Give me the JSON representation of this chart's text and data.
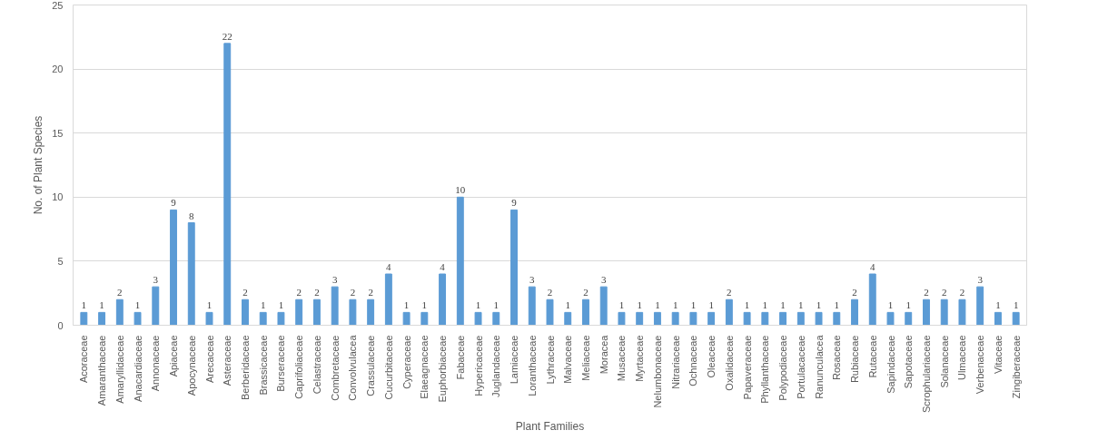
{
  "chart_data": {
    "type": "bar",
    "xlabel": "Plant Families",
    "ylabel": "No. of Plant Species",
    "categories": [
      "Acoraceae",
      "Amaranthaceae",
      "Amaryllidaceae",
      "Anacardiaceae",
      "Annonaceae",
      "Apiaceae",
      "Apocynaceae",
      "Arecaceae",
      "Asteraceae",
      "Berberidaceae",
      "Brassicaceae",
      "Burseraceae",
      "Caprifoliaceae",
      "Celastraceae",
      "Combretaceae",
      "Convolvulacea",
      "Crassulaceae",
      "Cucurbitaceae",
      "Cyperaceae",
      "Elaeagnaceae",
      "Euphorbiaceae",
      "Fabaceae",
      "Hypericaceae",
      "Juglandaceae",
      "Lamiaceae",
      "Loranthaceae",
      "Lythraceae",
      "Malvaceae",
      "Meliaceae",
      "Moracea",
      "Musaceae",
      "Myrtaceae",
      "Nelumbonaceae",
      "Nitrariaceae",
      "Ochnaceae",
      "Oleaceae",
      "Oxalidaceae",
      "Papaveraceae",
      "Phyllanthaceae",
      "Polypodiaceae",
      "Portulacaceae",
      "Ranunculacea",
      "Rosaceae",
      "Rubiaceae",
      "Rutaceae",
      "Sapindaceae",
      "Sapotaceae",
      "Scrophulariaceae",
      "Solanaceae",
      "Ulmaceae",
      "Verbenaceae",
      "Vitaceae",
      "Zingiberaceae"
    ],
    "values": [
      1,
      1,
      2,
      1,
      3,
      9,
      8,
      1,
      22,
      2,
      1,
      1,
      2,
      2,
      3,
      2,
      2,
      4,
      1,
      1,
      4,
      10,
      1,
      1,
      9,
      3,
      2,
      1,
      2,
      3,
      1,
      1,
      1,
      1,
      1,
      1,
      2,
      1,
      1,
      1,
      1,
      1,
      1,
      2,
      4,
      1,
      1,
      2,
      2,
      2,
      3,
      1,
      1
    ],
    "color": "#5b9bd5",
    "ylim": [
      0,
      25
    ],
    "yticks": [
      0,
      5,
      10,
      15,
      20,
      25
    ],
    "grid": "y",
    "data_labels": true
  }
}
